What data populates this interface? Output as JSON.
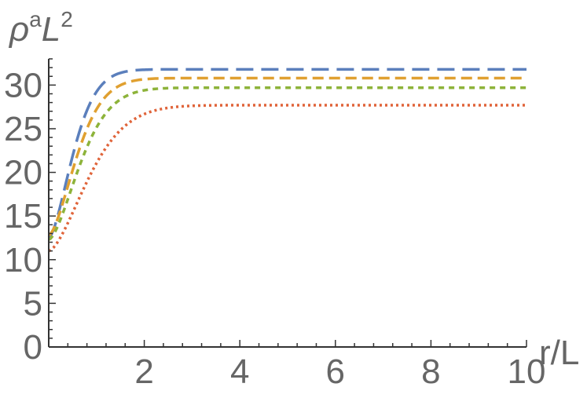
{
  "chart_data": {
    "type": "line",
    "title": "",
    "xlabel": "r/L",
    "ylabel": {
      "base": "ρ",
      "sup1": "a",
      "mid": "L",
      "sup2": "2"
    },
    "xlim": [
      0,
      10
    ],
    "ylim": [
      0,
      33
    ],
    "x_ticks": [
      2,
      4,
      6,
      8,
      10
    ],
    "y_ticks": [
      0,
      5,
      10,
      15,
      20,
      25,
      30
    ],
    "grid": false,
    "legend": "none",
    "series": [
      {
        "color": "#5B7FBC",
        "dash": "22,10",
        "x0": 0,
        "y0": 12.5,
        "asymptote": 31.8,
        "rate": 1.55
      },
      {
        "color": "#E0A030",
        "dash": "14,7",
        "x0": 0,
        "y0": 12.8,
        "asymptote": 30.8,
        "rate": 1.35
      },
      {
        "color": "#8DB33A",
        "dash": "7,6",
        "x0": 0,
        "y0": 12.3,
        "asymptote": 29.7,
        "rate": 1.2
      },
      {
        "color": "#E0643A",
        "dash": "3,4",
        "x0": 0,
        "y0": 11.0,
        "asymptote": 27.7,
        "rate": 0.95
      }
    ]
  }
}
